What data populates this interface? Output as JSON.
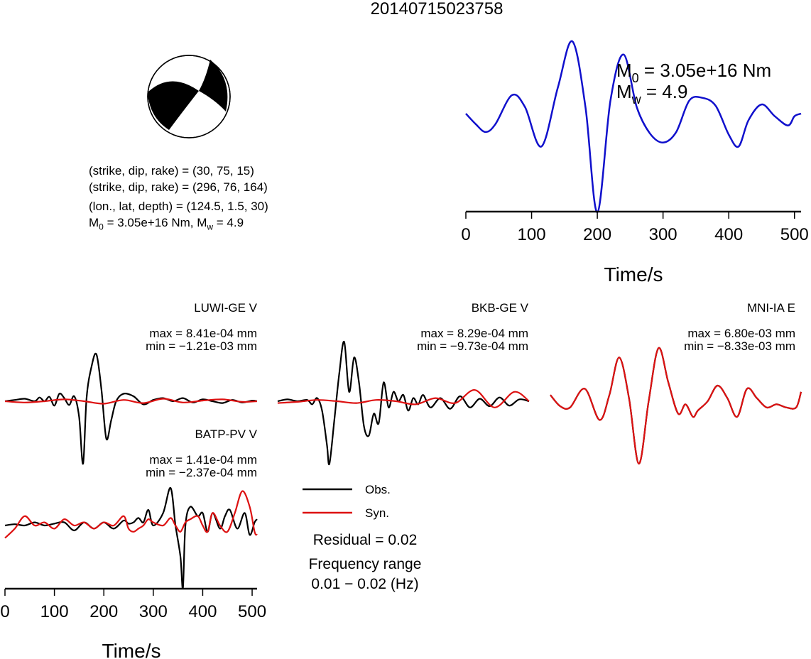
{
  "title": "20140715023758",
  "mechanism": {
    "plane1": "(strike, dip, rake) = (30, 75, 15)",
    "plane2": "(strike, dip, rake) = (296, 76, 164)",
    "location": "(lon., lat, depth) = (124.5, 1.5, 30)",
    "m0_prefix": "M",
    "m0_sub": "0",
    "m0_value": " = 3.05e+16 Nm, M",
    "mw_sub": "w",
    "mw_value": " = 4.9"
  },
  "stf": {
    "m0_prefix": "M",
    "m0_sub": "0",
    "m0_value": " = 3.05e+16 Nm",
    "mw_prefix": "M",
    "mw_sub": "w",
    "mw_value": " = 4.9"
  },
  "stations": [
    {
      "name": "LUWI-GE V",
      "max": "max = 8.41e-04 mm",
      "min": "min = −1.21e-03 mm"
    },
    {
      "name": "BKB-GE V",
      "max": "max = 8.29e-04 mm",
      "min": "min = −9.73e-04 mm"
    },
    {
      "name": "MNI-IA E",
      "max": "max = 6.80e-03 mm",
      "min": "min = −8.33e-03 mm"
    },
    {
      "name": "BATP-PV V",
      "max": "max = 1.41e-04 mm",
      "min": "min = −2.37e-04 mm"
    }
  ],
  "legend": {
    "obs": "Obs.",
    "syn": "Syn."
  },
  "residual": "Residual = 0.02",
  "freq_label": "Frequency range",
  "freq_value": "0.01 − 0.02 (Hz)",
  "colors": {
    "obs": "#000000",
    "syn": "#dd1111",
    "stf": "#1010cc"
  },
  "chart_data": [
    {
      "type": "line",
      "id": "source-time-function",
      "xlabel": "Time/s",
      "xlim": [
        0,
        510
      ],
      "xticks": [
        0,
        100,
        200,
        300,
        400,
        500
      ],
      "series": [
        {
          "x": [
            0,
            15,
            30,
            45,
            70,
            90,
            115,
            140,
            162,
            182,
            200,
            220,
            240,
            260,
            280,
            300,
            320,
            340,
            360,
            380,
            400,
            415,
            430,
            450,
            470,
            490,
            500,
            510
          ],
          "y": [
            0.0,
            -0.08,
            -0.14,
            -0.08,
            0.14,
            0.05,
            -0.25,
            0.2,
            0.55,
            0.05,
            -0.75,
            0.1,
            0.45,
            0.05,
            -0.15,
            -0.22,
            -0.14,
            0.1,
            0.12,
            0.06,
            -0.16,
            -0.25,
            -0.05,
            0.07,
            -0.02,
            -0.09,
            -0.02,
            0.0
          ]
        }
      ]
    },
    {
      "type": "line",
      "id": "waveform-luwi-ge-v",
      "xlim": [
        0,
        510
      ],
      "series": [
        {
          "x": [
            0,
            20,
            40,
            60,
            70,
            80,
            90,
            100,
            110,
            120,
            130,
            140,
            150,
            158,
            165,
            175,
            185,
            195,
            205,
            215,
            225,
            240,
            260,
            280,
            300,
            320,
            340,
            360,
            380,
            400,
            420,
            440,
            460,
            480,
            500,
            510
          ],
          "y": [
            0.0,
            0.02,
            0.04,
            0.0,
            0.06,
            0.0,
            0.07,
            -0.07,
            0.12,
            0.05,
            -0.06,
            0.08,
            -0.25,
            -1.0,
            0.05,
            0.55,
            0.75,
            0.2,
            -0.6,
            -0.3,
            0.0,
            0.12,
            0.08,
            -0.05,
            0.02,
            0.05,
            0.0,
            0.05,
            -0.02,
            0.03,
            0.0,
            -0.03,
            0.02,
            -0.02,
            0.01,
            0.0
          ]
        },
        {
          "x": [
            0,
            40,
            80,
            120,
            160,
            200,
            240,
            280,
            320,
            360,
            400,
            440,
            480,
            510
          ],
          "y": [
            0.0,
            -0.02,
            0.0,
            0.03,
            0.0,
            -0.04,
            0.02,
            -0.03,
            0.04,
            -0.02,
            0.01,
            0.03,
            -0.01,
            0.0
          ]
        }
      ]
    },
    {
      "type": "line",
      "id": "waveform-bkb-ge-v",
      "xlim": [
        0,
        510
      ],
      "series": [
        {
          "x": [
            0,
            20,
            40,
            60,
            70,
            80,
            90,
            100,
            105,
            115,
            125,
            135,
            145,
            155,
            165,
            175,
            185,
            195,
            205,
            215,
            225,
            235,
            245,
            255,
            265,
            275,
            285,
            295,
            310,
            330,
            350,
            370,
            390,
            410,
            430,
            450,
            470,
            490,
            510
          ],
          "y": [
            0.0,
            0.03,
            0.0,
            0.02,
            -0.05,
            0.05,
            -0.15,
            -0.7,
            -1.0,
            -0.3,
            0.45,
            0.95,
            0.15,
            0.7,
            0.3,
            -0.4,
            -0.55,
            -0.2,
            -0.35,
            0.3,
            -0.1,
            0.15,
            0.0,
            0.1,
            -0.15,
            0.05,
            -0.05,
            0.1,
            -0.1,
            0.05,
            -0.12,
            0.08,
            -0.1,
            0.04,
            -0.08,
            0.06,
            -0.07,
            0.03,
            0.0
          ]
        },
        {
          "x": [
            0,
            40,
            80,
            120,
            160,
            200,
            240,
            280,
            320,
            360,
            400,
            440,
            480,
            510
          ],
          "y": [
            -0.03,
            -0.01,
            0.02,
            0.0,
            -0.03,
            0.02,
            0.0,
            -0.05,
            0.05,
            -0.03,
            0.18,
            -0.1,
            0.15,
            0.0
          ]
        }
      ]
    },
    {
      "type": "line",
      "id": "waveform-mni-ia-e",
      "xlim": [
        0,
        510
      ],
      "series": [
        {
          "x": [
            0,
            20,
            40,
            70,
            100,
            120,
            140,
            160,
            180,
            200,
            220,
            240,
            260,
            275,
            290,
            300,
            320,
            340,
            360,
            380,
            400,
            420,
            440,
            460,
            480,
            500,
            510
          ],
          "y": [
            0.1,
            -0.08,
            -0.1,
            0.2,
            -0.3,
            0.1,
            0.7,
            0.05,
            -1.0,
            0.0,
            0.85,
            0.3,
            -0.2,
            -0.05,
            -0.25,
            -0.15,
            0.0,
            0.25,
            0.05,
            -0.25,
            0.2,
            0.05,
            -0.1,
            -0.05,
            -0.1,
            -0.1,
            0.15
          ]
        },
        {
          "x": [
            0,
            20,
            40,
            70,
            100,
            120,
            140,
            160,
            180,
            200,
            220,
            240,
            260,
            275,
            290,
            300,
            320,
            340,
            360,
            380,
            400,
            420,
            440,
            460,
            480,
            500,
            510
          ],
          "y": [
            0.1,
            -0.08,
            -0.1,
            0.2,
            -0.3,
            0.1,
            0.7,
            0.05,
            -1.0,
            0.0,
            0.85,
            0.3,
            -0.2,
            -0.05,
            -0.25,
            -0.15,
            0.0,
            0.25,
            0.05,
            -0.25,
            0.2,
            0.05,
            -0.1,
            -0.05,
            -0.1,
            -0.1,
            0.15
          ]
        }
      ]
    },
    {
      "type": "line",
      "id": "waveform-batp-pv-v",
      "xlabel": "Time/s",
      "xlim": [
        0,
        510
      ],
      "xticks": [
        0,
        100,
        200,
        300,
        400,
        500
      ],
      "series": [
        {
          "x": [
            0,
            20,
            40,
            60,
            80,
            100,
            120,
            140,
            160,
            180,
            200,
            220,
            240,
            250,
            260,
            270,
            280,
            290,
            300,
            320,
            335,
            345,
            355,
            360,
            365,
            375,
            390,
            400,
            410,
            420,
            435,
            445,
            455,
            470,
            485,
            495,
            505,
            510
          ],
          "y": [
            0.0,
            0.02,
            0.0,
            0.05,
            0.0,
            0.03,
            0.05,
            -0.08,
            0.05,
            -0.05,
            0.05,
            -0.05,
            0.08,
            0.03,
            0.05,
            0.12,
            0.05,
            0.25,
            0.0,
            0.2,
            0.6,
            0.0,
            -0.5,
            -1.0,
            0.0,
            0.3,
            0.15,
            0.2,
            -0.1,
            0.2,
            -0.05,
            0.15,
            0.25,
            -0.05,
            0.2,
            -0.15,
            0.05,
            0.1
          ]
        },
        {
          "x": [
            0,
            20,
            40,
            60,
            80,
            100,
            120,
            140,
            160,
            180,
            200,
            220,
            240,
            250,
            260,
            270,
            280,
            290,
            300,
            320,
            335,
            345,
            355,
            365,
            375,
            390,
            400,
            410,
            420,
            435,
            450,
            465,
            480,
            495,
            505,
            510
          ],
          "y": [
            -0.2,
            -0.05,
            0.15,
            0.0,
            0.05,
            -0.05,
            0.1,
            0.0,
            0.05,
            -0.05,
            0.05,
            0.0,
            0.15,
            -0.05,
            -0.1,
            -0.05,
            0.0,
            0.1,
            0.05,
            0.0,
            0.12,
            0.0,
            -0.1,
            0.05,
            0.1,
            0.15,
            0.0,
            -0.1,
            0.2,
            0.0,
            -0.1,
            0.2,
            0.55,
            0.3,
            -0.1,
            -0.15
          ]
        }
      ]
    }
  ]
}
